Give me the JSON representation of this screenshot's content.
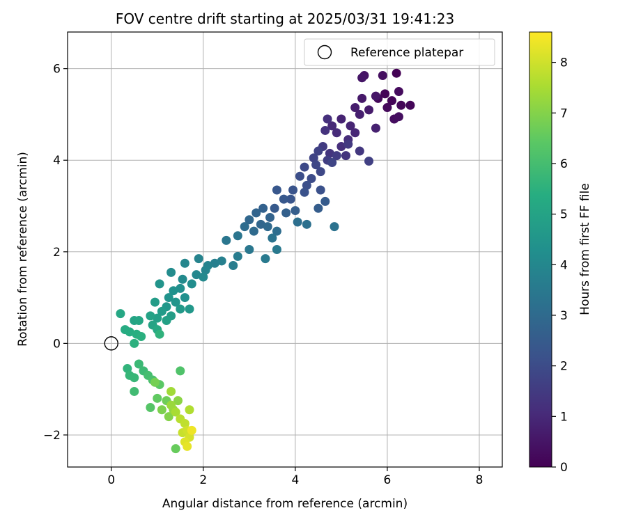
{
  "chart_data": {
    "type": "scatter",
    "title": "FOV centre drift starting at 2025/03/31 19:41:23",
    "xlabel": "Angular distance from reference (arcmin)",
    "ylabel": "Rotation from reference (arcmin)",
    "xlim": [
      -0.95,
      8.5
    ],
    "ylim": [
      -2.7,
      6.8
    ],
    "xticks": [
      0,
      2,
      4,
      6,
      8
    ],
    "yticks": [
      -2,
      0,
      2,
      4,
      6
    ],
    "xtick_labels": [
      "0",
      "2",
      "4",
      "6",
      "8"
    ],
    "ytick_labels": [
      "−2",
      "0",
      "2",
      "4",
      "6"
    ],
    "grid": true,
    "legend": {
      "position": "top-right",
      "entries": [
        "Reference platepar"
      ]
    },
    "reference_point": {
      "name": "Reference platepar",
      "x": 0,
      "y": 0,
      "marker": "open-circle"
    },
    "colorbar": {
      "label": "Hours from first FF file",
      "colormap": "viridis",
      "range": [
        0,
        8.6
      ],
      "ticks": [
        0,
        1,
        2,
        3,
        4,
        5,
        6,
        7,
        8
      ],
      "tick_labels": [
        "0",
        "1",
        "2",
        "3",
        "4",
        "5",
        "6",
        "7",
        "8"
      ]
    },
    "series": [
      {
        "color_by": "hours",
        "points": [
          [
            6.2,
            5.9,
            0.02
          ],
          [
            5.95,
            5.45,
            0.05
          ],
          [
            6.1,
            5.3,
            0.08
          ],
          [
            6.3,
            5.2,
            0.1
          ],
          [
            6.5,
            5.2,
            0.12
          ],
          [
            5.8,
            5.35,
            0.15
          ],
          [
            6.0,
            5.15,
            0.2
          ],
          [
            6.25,
            5.5,
            0.25
          ],
          [
            6.15,
            4.9,
            0.3
          ],
          [
            6.25,
            4.95,
            0.35
          ],
          [
            5.9,
            5.85,
            0.35
          ],
          [
            5.5,
            5.85,
            0.45
          ],
          [
            5.45,
            5.8,
            0.5
          ],
          [
            5.75,
            5.4,
            0.55
          ],
          [
            5.45,
            5.35,
            0.6
          ],
          [
            5.6,
            5.1,
            0.65
          ],
          [
            5.3,
            5.15,
            0.7
          ],
          [
            5.4,
            5.0,
            0.75
          ],
          [
            5.75,
            4.7,
            0.8
          ],
          [
            5.0,
            4.9,
            0.85
          ],
          [
            5.2,
            4.75,
            0.9
          ],
          [
            5.3,
            4.6,
            0.95
          ],
          [
            4.8,
            4.75,
            1.0
          ],
          [
            4.9,
            4.6,
            1.05
          ],
          [
            5.15,
            4.45,
            1.1
          ],
          [
            5.0,
            4.3,
            1.15
          ],
          [
            4.7,
            4.9,
            1.2
          ],
          [
            4.65,
            4.65,
            1.25
          ],
          [
            5.1,
            4.1,
            1.3
          ],
          [
            4.75,
            4.15,
            1.35
          ],
          [
            5.4,
            4.2,
            1.4
          ],
          [
            5.15,
            4.35,
            1.45
          ],
          [
            4.6,
            4.3,
            1.5
          ],
          [
            4.9,
            4.1,
            1.55
          ],
          [
            4.7,
            4.0,
            1.6
          ],
          [
            5.6,
            3.98,
            1.65
          ],
          [
            4.5,
            4.2,
            1.7
          ],
          [
            4.4,
            4.05,
            1.75
          ],
          [
            4.8,
            3.95,
            1.8
          ],
          [
            4.45,
            3.9,
            1.85
          ],
          [
            4.55,
            3.75,
            1.9
          ],
          [
            4.2,
            3.85,
            1.95
          ],
          [
            4.35,
            3.6,
            2.0
          ],
          [
            4.1,
            3.65,
            2.05
          ],
          [
            4.25,
            3.45,
            2.1
          ],
          [
            4.55,
            3.35,
            2.15
          ],
          [
            4.2,
            3.3,
            2.2
          ],
          [
            3.95,
            3.35,
            2.25
          ],
          [
            3.9,
            3.15,
            2.3
          ],
          [
            3.6,
            3.35,
            2.35
          ],
          [
            3.75,
            3.15,
            2.4
          ],
          [
            3.55,
            2.95,
            2.45
          ],
          [
            4.65,
            3.1,
            2.5
          ],
          [
            4.5,
            2.95,
            2.55
          ],
          [
            4.0,
            2.9,
            2.6
          ],
          [
            3.8,
            2.85,
            2.65
          ],
          [
            3.3,
            2.95,
            2.7
          ],
          [
            3.45,
            2.75,
            2.75
          ],
          [
            3.15,
            2.85,
            2.8
          ],
          [
            3.25,
            2.6,
            2.85
          ],
          [
            3.0,
            2.7,
            2.9
          ],
          [
            3.4,
            2.55,
            2.95
          ],
          [
            3.1,
            2.45,
            3.0
          ],
          [
            2.9,
            2.55,
            3.05
          ],
          [
            3.6,
            2.45,
            3.1
          ],
          [
            4.05,
            2.65,
            3.15
          ],
          [
            4.25,
            2.6,
            3.2
          ],
          [
            4.85,
            2.55,
            3.25
          ],
          [
            3.5,
            2.3,
            3.3
          ],
          [
            2.75,
            2.35,
            3.35
          ],
          [
            2.5,
            2.25,
            3.4
          ],
          [
            3.0,
            2.05,
            3.45
          ],
          [
            3.6,
            2.05,
            3.5
          ],
          [
            3.35,
            1.85,
            3.55
          ],
          [
            2.75,
            1.9,
            3.6
          ],
          [
            2.65,
            1.7,
            3.65
          ],
          [
            2.25,
            1.75,
            3.7
          ],
          [
            2.4,
            1.8,
            3.75
          ],
          [
            2.1,
            1.7,
            3.8
          ],
          [
            1.9,
            1.85,
            3.85
          ],
          [
            2.05,
            1.6,
            3.9
          ],
          [
            1.6,
            1.75,
            3.95
          ],
          [
            1.85,
            1.5,
            4.0
          ],
          [
            2.0,
            1.45,
            4.05
          ],
          [
            1.55,
            1.4,
            4.1
          ],
          [
            1.3,
            1.55,
            4.15
          ],
          [
            1.75,
            1.3,
            4.2
          ],
          [
            1.5,
            1.2,
            4.25
          ],
          [
            1.6,
            1.0,
            4.3
          ],
          [
            1.35,
            1.15,
            4.35
          ],
          [
            1.25,
            1.0,
            4.4
          ],
          [
            1.05,
            1.3,
            4.45
          ],
          [
            1.4,
            0.9,
            4.5
          ],
          [
            1.2,
            0.8,
            4.55
          ],
          [
            1.7,
            0.75,
            4.6
          ],
          [
            1.5,
            0.75,
            4.65
          ],
          [
            1.1,
            0.7,
            4.7
          ],
          [
            0.95,
            0.9,
            4.75
          ],
          [
            1.3,
            0.6,
            4.8
          ],
          [
            1.0,
            0.55,
            4.85
          ],
          [
            1.2,
            0.5,
            4.9
          ],
          [
            0.85,
            0.6,
            4.95
          ],
          [
            0.9,
            0.4,
            5.0
          ],
          [
            0.5,
            0.5,
            5.05
          ],
          [
            0.6,
            0.5,
            5.1
          ],
          [
            0.2,
            0.65,
            5.15
          ],
          [
            1.0,
            0.3,
            5.2
          ],
          [
            0.3,
            0.3,
            5.3
          ],
          [
            0.4,
            0.25,
            5.35
          ],
          [
            0.55,
            0.2,
            5.4
          ],
          [
            0.65,
            0.15,
            5.45
          ],
          [
            0.5,
            0.0,
            5.5
          ],
          [
            1.05,
            0.2,
            5.55
          ],
          [
            0.35,
            -0.55,
            5.6
          ],
          [
            0.4,
            -0.7,
            5.7
          ],
          [
            0.5,
            -0.75,
            5.75
          ],
          [
            0.6,
            -0.45,
            5.8
          ],
          [
            0.7,
            -0.6,
            5.85
          ],
          [
            0.5,
            -1.05,
            5.9
          ],
          [
            0.8,
            -0.7,
            6.0
          ],
          [
            0.9,
            -0.8,
            6.1
          ],
          [
            1.5,
            -0.6,
            6.2
          ],
          [
            0.85,
            -1.4,
            6.3
          ],
          [
            1.05,
            -0.9,
            6.4
          ],
          [
            1.0,
            -1.2,
            6.5
          ],
          [
            1.4,
            -2.3,
            6.6
          ],
          [
            1.2,
            -1.25,
            6.7
          ],
          [
            0.95,
            -0.85,
            6.8
          ],
          [
            1.1,
            -1.45,
            6.9
          ],
          [
            1.25,
            -1.6,
            7.0
          ],
          [
            1.45,
            -1.25,
            7.1
          ],
          [
            1.35,
            -1.45,
            7.2
          ],
          [
            1.3,
            -1.35,
            7.3
          ],
          [
            1.3,
            -1.05,
            7.4
          ],
          [
            1.4,
            -1.5,
            7.5
          ],
          [
            1.7,
            -1.45,
            7.6
          ],
          [
            1.5,
            -1.65,
            7.7
          ],
          [
            1.6,
            -1.75,
            7.8
          ],
          [
            1.55,
            -1.95,
            7.9
          ],
          [
            1.65,
            -1.9,
            8.0
          ],
          [
            1.7,
            -2.05,
            8.1
          ],
          [
            1.6,
            -2.15,
            8.2
          ],
          [
            1.65,
            -2.25,
            8.3
          ],
          [
            1.75,
            -1.9,
            8.4
          ]
        ]
      }
    ]
  }
}
